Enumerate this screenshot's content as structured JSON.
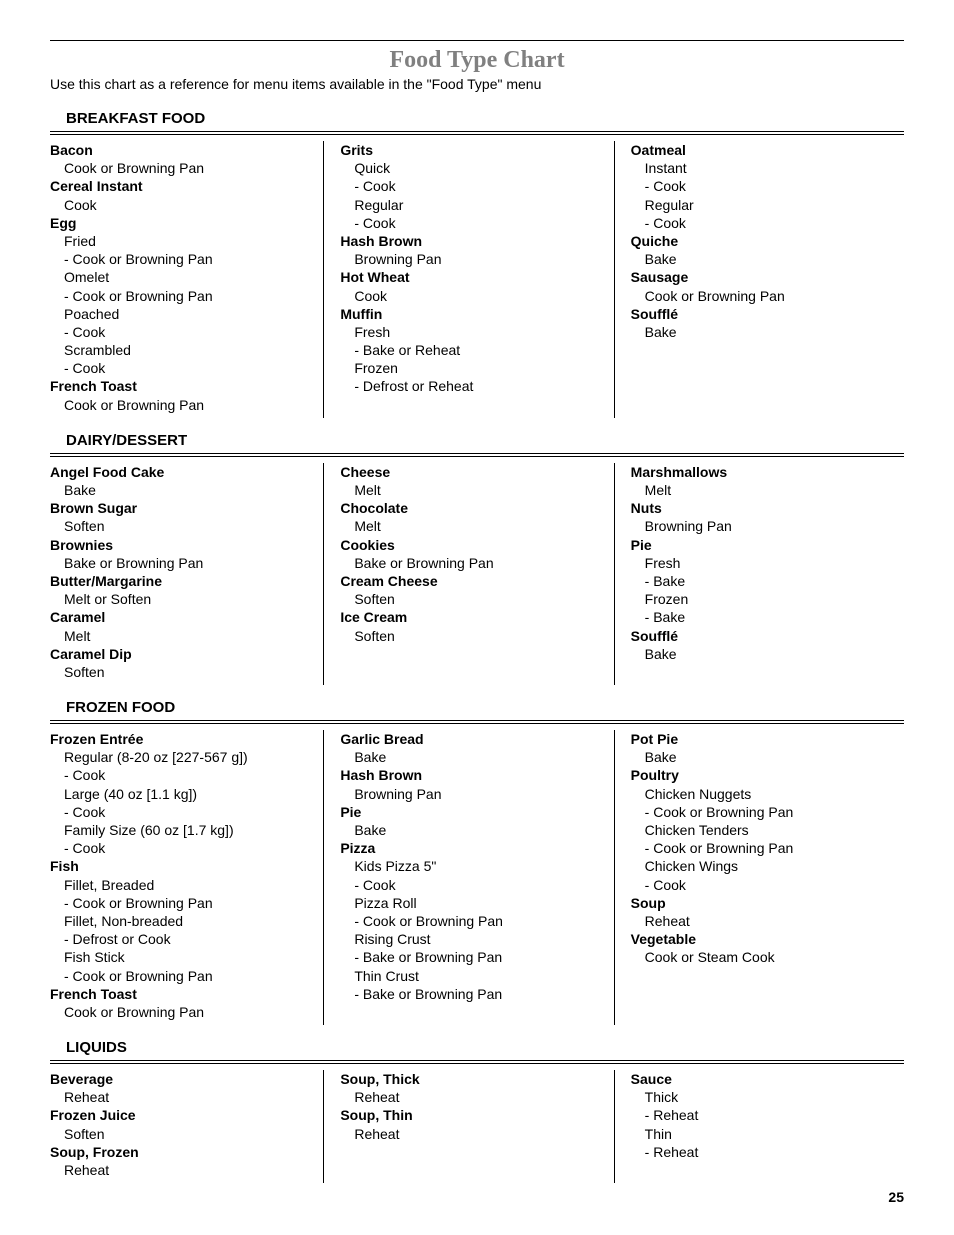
{
  "page_title": "Food Type Chart",
  "subtitle": "Use this chart as a reference for menu items available in the \"Food Type\" menu",
  "page_number": "25",
  "colors": {
    "title_color": "#808080",
    "text_color": "#000000",
    "rule_color": "#000000",
    "background": "#ffffff"
  },
  "typography": {
    "title_font": "Georgia serif",
    "title_size_pt": 18,
    "body_font": "Arial sans-serif",
    "body_size_pt": 10.5,
    "header_size_pt": 11
  },
  "sections": [
    {
      "header": "BREAKFAST FOOD",
      "columns": [
        [
          {
            "name": "Bacon",
            "lines": [
              "Cook or Browning Pan"
            ]
          },
          {
            "name": "Cereal Instant",
            "lines": [
              "Cook"
            ]
          },
          {
            "name": "Egg",
            "lines": [
              "Fried",
              "- Cook or Browning Pan",
              "Omelet",
              "- Cook or Browning Pan",
              "Poached",
              "- Cook",
              "Scrambled",
              "- Cook"
            ]
          },
          {
            "name": "French Toast",
            "lines": [
              "Cook or Browning Pan"
            ]
          }
        ],
        [
          {
            "name": "Grits",
            "lines": [
              "Quick",
              "- Cook",
              "Regular",
              "- Cook"
            ]
          },
          {
            "name": "Hash Brown",
            "lines": [
              "Browning Pan"
            ]
          },
          {
            "name": "Hot Wheat",
            "lines": [
              "Cook"
            ]
          },
          {
            "name": "Muffin",
            "lines": [
              "Fresh",
              "- Bake or Reheat",
              "Frozen",
              "- Defrost or Reheat"
            ]
          }
        ],
        [
          {
            "name": "Oatmeal",
            "lines": [
              "Instant",
              "- Cook",
              "Regular",
              "- Cook"
            ]
          },
          {
            "name": "Quiche",
            "lines": [
              "Bake"
            ]
          },
          {
            "name": "Sausage",
            "lines": [
              "Cook or Browning Pan"
            ]
          },
          {
            "name": "Soufflé",
            "lines": [
              "Bake"
            ]
          }
        ]
      ]
    },
    {
      "header": "DAIRY/DESSERT",
      "columns": [
        [
          {
            "name": "Angel Food Cake",
            "lines": [
              "Bake"
            ]
          },
          {
            "name": "Brown Sugar",
            "lines": [
              "Soften"
            ]
          },
          {
            "name": "Brownies",
            "lines": [
              "Bake or Browning Pan"
            ]
          },
          {
            "name": "Butter/Margarine",
            "lines": [
              "Melt or Soften"
            ]
          },
          {
            "name": "Caramel",
            "lines": [
              "Melt"
            ]
          },
          {
            "name": "Caramel Dip",
            "lines": [
              "Soften"
            ]
          }
        ],
        [
          {
            "name": "Cheese",
            "lines": [
              "Melt"
            ]
          },
          {
            "name": "Chocolate",
            "lines": [
              "Melt"
            ]
          },
          {
            "name": "Cookies",
            "lines": [
              "Bake or Browning Pan"
            ]
          },
          {
            "name": "Cream Cheese",
            "lines": [
              "Soften"
            ]
          },
          {
            "name": "Ice Cream",
            "lines": [
              "Soften"
            ]
          }
        ],
        [
          {
            "name": "Marshmallows",
            "lines": [
              "Melt"
            ]
          },
          {
            "name": "Nuts",
            "lines": [
              "Browning Pan"
            ]
          },
          {
            "name": "Pie",
            "lines": [
              "Fresh",
              "- Bake",
              "Frozen",
              "- Bake"
            ]
          },
          {
            "name": "Soufflé",
            "lines": [
              "Bake"
            ]
          }
        ]
      ]
    },
    {
      "header": "FROZEN FOOD",
      "columns": [
        [
          {
            "name": "Frozen Entrée",
            "lines": [
              "Regular (8-20 oz [227-567 g])",
              "- Cook",
              "Large (40 oz [1.1 kg])",
              "- Cook",
              "Family Size (60 oz [1.7 kg])",
              "- Cook"
            ]
          },
          {
            "name": "Fish",
            "lines": [
              "Fillet, Breaded",
              "- Cook or Browning Pan",
              "Fillet, Non-breaded",
              "- Defrost or Cook",
              "Fish Stick",
              "- Cook or Browning Pan"
            ]
          },
          {
            "name": "French Toast",
            "lines": [
              "Cook or Browning Pan"
            ]
          }
        ],
        [
          {
            "name": "Garlic Bread",
            "lines": [
              "Bake"
            ]
          },
          {
            "name": "Hash Brown",
            "lines": [
              "Browning Pan"
            ]
          },
          {
            "name": "Pie",
            "lines": [
              "Bake"
            ]
          },
          {
            "name": "Pizza",
            "lines": [
              "Kids Pizza 5\"",
              "- Cook",
              "Pizza Roll",
              "- Cook or Browning Pan",
              "Rising Crust",
              "- Bake or Browning Pan",
              "Thin Crust",
              "- Bake or Browning Pan"
            ]
          }
        ],
        [
          {
            "name": "Pot Pie",
            "lines": [
              "Bake"
            ]
          },
          {
            "name": "Poultry",
            "lines": [
              "Chicken Nuggets",
              "- Cook or Browning Pan",
              "Chicken Tenders",
              "- Cook or Browning Pan",
              "Chicken Wings",
              "- Cook"
            ]
          },
          {
            "name": "Soup",
            "lines": [
              "Reheat"
            ]
          },
          {
            "name": "Vegetable",
            "lines": [
              "Cook or Steam Cook"
            ]
          }
        ]
      ]
    },
    {
      "header": "LIQUIDS",
      "columns": [
        [
          {
            "name": "Beverage",
            "lines": [
              "Reheat"
            ]
          },
          {
            "name": "Frozen Juice",
            "lines": [
              "Soften"
            ]
          },
          {
            "name": "Soup, Frozen",
            "lines": [
              "Reheat"
            ]
          }
        ],
        [
          {
            "name": "Soup, Thick",
            "lines": [
              "Reheat"
            ]
          },
          {
            "name": "Soup, Thin",
            "lines": [
              "Reheat"
            ]
          }
        ],
        [
          {
            "name": "Sauce",
            "lines": [
              "Thick",
              "- Reheat",
              "Thin",
              "- Reheat"
            ]
          }
        ]
      ]
    }
  ]
}
